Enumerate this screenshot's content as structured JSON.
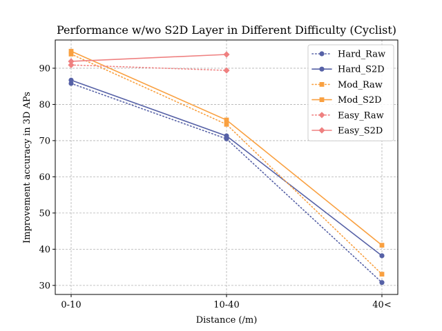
{
  "chart_data": {
    "type": "line",
    "title": "Performance w/wo S2D Layer in Different Difficulty (Cyclist)",
    "xlabel": "Distance (/m)",
    "ylabel": "Improvement accuracy in 3D APs",
    "categories": [
      "0-10",
      "10-40",
      "40<"
    ],
    "ylim": [
      27.5,
      97.8
    ],
    "yticks": [
      30,
      40,
      50,
      60,
      70,
      80,
      90
    ],
    "grid": true,
    "legend_position": "top-right",
    "series": [
      {
        "name": "Hard_Raw",
        "color": "#5661a6",
        "dash": "dotted",
        "marker": "circle",
        "values": [
          85.8,
          70.5,
          30.8
        ]
      },
      {
        "name": "Hard_S2D",
        "color": "#5661a6",
        "dash": "solid",
        "marker": "circle",
        "values": [
          86.7,
          71.3,
          38.2
        ]
      },
      {
        "name": "Mod_Raw",
        "color": "#f9a040",
        "dash": "dotted",
        "marker": "square",
        "values": [
          93.9,
          74.5,
          33.1
        ]
      },
      {
        "name": "Mod_S2D",
        "color": "#f9a040",
        "dash": "solid",
        "marker": "square",
        "values": [
          94.7,
          75.7,
          41.1
        ]
      },
      {
        "name": "Easy_Raw",
        "color": "#ef8080",
        "dash": "dotted",
        "marker": "diamond",
        "values": [
          90.9,
          89.4,
          null
        ]
      },
      {
        "name": "Easy_S2D",
        "color": "#ef8080",
        "dash": "solid",
        "marker": "diamond",
        "values": [
          91.9,
          93.8,
          null
        ]
      }
    ]
  }
}
